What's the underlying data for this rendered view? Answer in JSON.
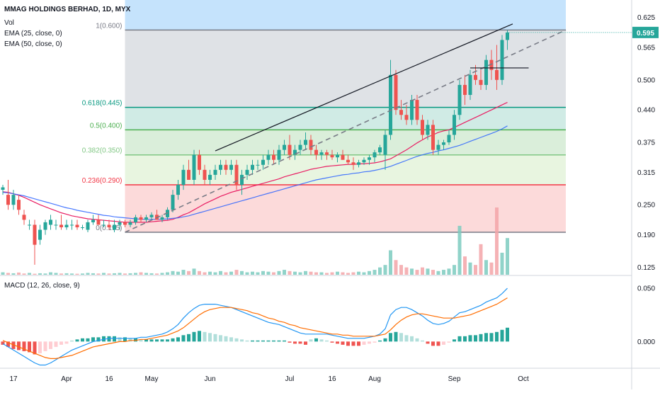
{
  "chart_data": {
    "type": "candlestick",
    "title": "MMAG HOLDINGS BERHAD, 1D, MYX",
    "legend": [
      "Vol",
      "EMA (25, close, 0)",
      "EMA (50, close, 0)"
    ],
    "last_price": "0.595",
    "price_axis": {
      "min": 0.11,
      "max": 0.66,
      "ticks": [
        "0.625",
        "0.565",
        "0.500",
        "0.440",
        "0.375",
        "0.315",
        "0.250",
        "0.190",
        "0.125"
      ]
    },
    "x_ticks": [
      {
        "i": 2,
        "label": "17"
      },
      {
        "i": 12,
        "label": "Apr"
      },
      {
        "i": 20,
        "label": "16"
      },
      {
        "i": 28,
        "label": "May"
      },
      {
        "i": 39,
        "label": "Jun"
      },
      {
        "i": 54,
        "label": "Jul"
      },
      {
        "i": 62,
        "label": "16"
      },
      {
        "i": 70,
        "label": "Aug"
      },
      {
        "i": 85,
        "label": "Sep"
      },
      {
        "i": 98,
        "label": "Oct"
      }
    ],
    "fib_levels": [
      {
        "label": "1(0.600)",
        "value": 0.6,
        "color": "#787b86"
      },
      {
        "label": "0.618(0.445)",
        "value": 0.445,
        "color": "#089981"
      },
      {
        "label": "0.5(0.400)",
        "value": 0.4,
        "color": "#4caf50"
      },
      {
        "label": "0.382(0.350)",
        "value": 0.35,
        "color": "#81c784"
      },
      {
        "label": "0.236(0.290)",
        "value": 0.29,
        "color": "#f23645"
      },
      {
        "label": "0(0.195)",
        "value": 0.195,
        "color": "#787b86"
      }
    ],
    "fib_zone_colors": {
      "above": "#bbdefb",
      "z1": "#dcdfe3",
      "z2": "#cbe9e2",
      "z3": "#d6ecd6",
      "z4": "#e6f4dd",
      "z5": "#fcd6d6"
    },
    "ohlc": [
      [
        0.28,
        0.29,
        0.27,
        0.285
      ],
      [
        0.27,
        0.3,
        0.24,
        0.25
      ],
      [
        0.25,
        0.28,
        0.24,
        0.27
      ],
      [
        0.26,
        0.27,
        0.23,
        0.24
      ],
      [
        0.23,
        0.24,
        0.21,
        0.22
      ],
      [
        0.21,
        0.22,
        0.2,
        0.21
      ],
      [
        0.21,
        0.22,
        0.13,
        0.17
      ],
      [
        0.18,
        0.21,
        0.17,
        0.2
      ],
      [
        0.2,
        0.22,
        0.19,
        0.215
      ],
      [
        0.21,
        0.23,
        0.2,
        0.22
      ],
      [
        0.21,
        0.22,
        0.2,
        0.21
      ],
      [
        0.21,
        0.23,
        0.2,
        0.205
      ],
      [
        0.205,
        0.22,
        0.2,
        0.21
      ],
      [
        0.21,
        0.22,
        0.2,
        0.21
      ],
      [
        0.21,
        0.22,
        0.2,
        0.205
      ],
      [
        0.205,
        0.21,
        0.2,
        0.205
      ],
      [
        0.2,
        0.22,
        0.195,
        0.215
      ],
      [
        0.215,
        0.23,
        0.21,
        0.22
      ],
      [
        0.22,
        0.23,
        0.21,
        0.21
      ],
      [
        0.21,
        0.22,
        0.205,
        0.21
      ],
      [
        0.21,
        0.22,
        0.2,
        0.205
      ],
      [
        0.2,
        0.22,
        0.195,
        0.21
      ],
      [
        0.21,
        0.22,
        0.2,
        0.215
      ],
      [
        0.215,
        0.22,
        0.205,
        0.21
      ],
      [
        0.21,
        0.22,
        0.205,
        0.215
      ],
      [
        0.215,
        0.23,
        0.21,
        0.225
      ],
      [
        0.225,
        0.23,
        0.215,
        0.22
      ],
      [
        0.22,
        0.23,
        0.215,
        0.225
      ],
      [
        0.225,
        0.235,
        0.22,
        0.23
      ],
      [
        0.23,
        0.24,
        0.22,
        0.22
      ],
      [
        0.22,
        0.23,
        0.215,
        0.225
      ],
      [
        0.225,
        0.245,
        0.22,
        0.24
      ],
      [
        0.24,
        0.28,
        0.235,
        0.27
      ],
      [
        0.27,
        0.3,
        0.26,
        0.29
      ],
      [
        0.29,
        0.33,
        0.28,
        0.32
      ],
      [
        0.32,
        0.34,
        0.3,
        0.3
      ],
      [
        0.3,
        0.36,
        0.29,
        0.35
      ],
      [
        0.35,
        0.36,
        0.31,
        0.32
      ],
      [
        0.32,
        0.33,
        0.29,
        0.3
      ],
      [
        0.3,
        0.32,
        0.29,
        0.31
      ],
      [
        0.31,
        0.33,
        0.3,
        0.32
      ],
      [
        0.32,
        0.34,
        0.31,
        0.33
      ],
      [
        0.33,
        0.34,
        0.31,
        0.32
      ],
      [
        0.32,
        0.34,
        0.31,
        0.33
      ],
      [
        0.33,
        0.34,
        0.28,
        0.29
      ],
      [
        0.29,
        0.32,
        0.27,
        0.31
      ],
      [
        0.31,
        0.33,
        0.3,
        0.32
      ],
      [
        0.32,
        0.34,
        0.31,
        0.33
      ],
      [
        0.33,
        0.34,
        0.32,
        0.33
      ],
      [
        0.33,
        0.35,
        0.32,
        0.34
      ],
      [
        0.34,
        0.36,
        0.33,
        0.35
      ],
      [
        0.35,
        0.36,
        0.33,
        0.34
      ],
      [
        0.34,
        0.37,
        0.33,
        0.36
      ],
      [
        0.36,
        0.38,
        0.35,
        0.37
      ],
      [
        0.37,
        0.39,
        0.34,
        0.35
      ],
      [
        0.35,
        0.37,
        0.34,
        0.36
      ],
      [
        0.36,
        0.38,
        0.35,
        0.37
      ],
      [
        0.37,
        0.395,
        0.36,
        0.38
      ],
      [
        0.38,
        0.39,
        0.35,
        0.36
      ],
      [
        0.36,
        0.37,
        0.34,
        0.35
      ],
      [
        0.35,
        0.36,
        0.34,
        0.355
      ],
      [
        0.355,
        0.36,
        0.34,
        0.35
      ],
      [
        0.35,
        0.36,
        0.34,
        0.345
      ],
      [
        0.345,
        0.355,
        0.335,
        0.35
      ],
      [
        0.35,
        0.36,
        0.34,
        0.34
      ],
      [
        0.34,
        0.35,
        0.33,
        0.335
      ],
      [
        0.335,
        0.345,
        0.32,
        0.33
      ],
      [
        0.33,
        0.34,
        0.325,
        0.335
      ],
      [
        0.335,
        0.345,
        0.33,
        0.34
      ],
      [
        0.34,
        0.35,
        0.33,
        0.345
      ],
      [
        0.345,
        0.36,
        0.335,
        0.355
      ],
      [
        0.355,
        0.37,
        0.35,
        0.365
      ],
      [
        0.35,
        0.4,
        0.32,
        0.39
      ],
      [
        0.39,
        0.54,
        0.38,
        0.51
      ],
      [
        0.51,
        0.52,
        0.43,
        0.44
      ],
      [
        0.44,
        0.46,
        0.42,
        0.43
      ],
      [
        0.43,
        0.45,
        0.41,
        0.42
      ],
      [
        0.42,
        0.47,
        0.41,
        0.46
      ],
      [
        0.46,
        0.47,
        0.41,
        0.42
      ],
      [
        0.42,
        0.43,
        0.38,
        0.39
      ],
      [
        0.39,
        0.42,
        0.38,
        0.41
      ],
      [
        0.41,
        0.42,
        0.35,
        0.36
      ],
      [
        0.36,
        0.38,
        0.35,
        0.37
      ],
      [
        0.37,
        0.38,
        0.36,
        0.375
      ],
      [
        0.375,
        0.4,
        0.37,
        0.39
      ],
      [
        0.39,
        0.44,
        0.38,
        0.43
      ],
      [
        0.43,
        0.5,
        0.42,
        0.49
      ],
      [
        0.49,
        0.51,
        0.45,
        0.47
      ],
      [
        0.47,
        0.52,
        0.46,
        0.51
      ],
      [
        0.51,
        0.53,
        0.49,
        0.5
      ],
      [
        0.5,
        0.52,
        0.48,
        0.49
      ],
      [
        0.49,
        0.55,
        0.48,
        0.54
      ],
      [
        0.54,
        0.56,
        0.5,
        0.52
      ],
      [
        0.52,
        0.57,
        0.48,
        0.5
      ],
      [
        0.5,
        0.59,
        0.49,
        0.58
      ],
      [
        0.58,
        0.6,
        0.56,
        0.595
      ]
    ],
    "volume": [
      2,
      1.5,
      1.2,
      1.8,
      1,
      1.5,
      0.8,
      1.2,
      1,
      2,
      1.5,
      1,
      1.2,
      1,
      0.8,
      1,
      1.5,
      1.2,
      1,
      1.5,
      1,
      1.2,
      1.5,
      1,
      1.2,
      1.5,
      2,
      1.5,
      1.2,
      1,
      1.5,
      2,
      3,
      2.5,
      4,
      3,
      5,
      3,
      2,
      2.5,
      2,
      3,
      2,
      2.5,
      4,
      3,
      2,
      2.5,
      2,
      3,
      2.5,
      2,
      3,
      4,
      3,
      2.5,
      2,
      3,
      2.5,
      2,
      2,
      1.5,
      2,
      2.5,
      2,
      1.5,
      2,
      2.5,
      2,
      3,
      4,
      6,
      8,
      20,
      12,
      8,
      6,
      5,
      4,
      6,
      5,
      4,
      3,
      4,
      5,
      8,
      40,
      15,
      10,
      8,
      25,
      12,
      10,
      55,
      18,
      30
    ],
    "ema25": [
      0.276,
      0.275,
      0.272,
      0.269,
      0.265,
      0.26,
      0.255,
      0.25,
      0.246,
      0.242,
      0.238,
      0.234,
      0.231,
      0.228,
      0.226,
      0.224,
      0.222,
      0.221,
      0.22,
      0.219,
      0.218,
      0.217,
      0.216,
      0.215,
      0.215,
      0.215,
      0.215,
      0.215,
      0.216,
      0.217,
      0.218,
      0.219,
      0.221,
      0.225,
      0.23,
      0.234,
      0.24,
      0.246,
      0.252,
      0.257,
      0.262,
      0.267,
      0.271,
      0.275,
      0.278,
      0.281,
      0.284,
      0.287,
      0.29,
      0.293,
      0.296,
      0.299,
      0.302,
      0.306,
      0.309,
      0.312,
      0.315,
      0.318,
      0.321,
      0.323,
      0.325,
      0.327,
      0.328,
      0.329,
      0.33,
      0.331,
      0.331,
      0.332,
      0.332,
      0.333,
      0.334,
      0.336,
      0.339,
      0.342,
      0.348,
      0.354,
      0.36,
      0.367,
      0.374,
      0.38,
      0.386,
      0.39,
      0.395,
      0.398,
      0.4,
      0.405,
      0.41,
      0.415,
      0.42,
      0.425,
      0.43,
      0.435,
      0.44,
      0.445,
      0.45,
      0.455
    ],
    "ema50": [
      0.275,
      0.274,
      0.272,
      0.27,
      0.268,
      0.265,
      0.262,
      0.259,
      0.256,
      0.253,
      0.25,
      0.247,
      0.244,
      0.242,
      0.239,
      0.237,
      0.235,
      0.233,
      0.231,
      0.229,
      0.228,
      0.226,
      0.225,
      0.224,
      0.223,
      0.222,
      0.221,
      0.221,
      0.221,
      0.221,
      0.221,
      0.222,
      0.223,
      0.224,
      0.226,
      0.228,
      0.231,
      0.234,
      0.237,
      0.24,
      0.243,
      0.246,
      0.249,
      0.252,
      0.255,
      0.258,
      0.261,
      0.264,
      0.267,
      0.27,
      0.273,
      0.276,
      0.279,
      0.282,
      0.285,
      0.288,
      0.291,
      0.294,
      0.297,
      0.3,
      0.302,
      0.304,
      0.306,
      0.308,
      0.31,
      0.311,
      0.313,
      0.314,
      0.316,
      0.317,
      0.319,
      0.321,
      0.324,
      0.327,
      0.331,
      0.335,
      0.339,
      0.343,
      0.347,
      0.35,
      0.353,
      0.355,
      0.358,
      0.36,
      0.363,
      0.366,
      0.369,
      0.373,
      0.377,
      0.381,
      0.385,
      0.389,
      0.393,
      0.397,
      0.402,
      0.408
    ],
    "macd": {
      "label": "MACD (12, 26, close, 9)",
      "ticks": [
        "0.050",
        "0.000"
      ],
      "range": [
        -0.025,
        0.06
      ],
      "hist": [
        -0.003,
        -0.005,
        -0.007,
        -0.008,
        -0.009,
        -0.01,
        -0.012,
        -0.011,
        -0.009,
        -0.007,
        -0.005,
        -0.003,
        -0.002,
        0.001,
        0.002,
        0.003,
        0.003,
        0.004,
        0.004,
        0.005,
        0.005,
        0.005,
        0.004,
        0.004,
        0.003,
        0.003,
        0.002,
        0.002,
        0.002,
        0.002,
        0.002,
        0.002,
        0.003,
        0.004,
        0.006,
        0.007,
        0.009,
        0.01,
        0.009,
        0.008,
        0.007,
        0.006,
        0.005,
        0.004,
        0.003,
        0.002,
        0.001,
        0.001,
        0.001,
        0.001,
        0.001,
        0.001,
        0.001,
        0.001,
        -0.001,
        -0.002,
        -0.002,
        -0.003,
        0.002,
        0.003,
        0.002,
        0.001,
        -0.001,
        -0.002,
        -0.003,
        -0.004,
        -0.004,
        -0.004,
        -0.003,
        -0.002,
        -0.001,
        0.001,
        0.003,
        0.008,
        0.009,
        0.008,
        0.006,
        0.005,
        0.003,
        0.001,
        -0.002,
        -0.004,
        -0.004,
        -0.003,
        -0.001,
        0.002,
        0.005,
        0.005,
        0.006,
        0.006,
        0.007,
        0.008,
        0.008,
        0.009,
        0.011,
        0.013
      ],
      "macd_line": [
        -0.002,
        -0.005,
        -0.008,
        -0.011,
        -0.014,
        -0.017,
        -0.02,
        -0.022,
        -0.022,
        -0.02,
        -0.017,
        -0.014,
        -0.011,
        -0.008,
        -0.006,
        -0.004,
        -0.002,
        0.0,
        0.001,
        0.002,
        0.003,
        0.003,
        0.003,
        0.003,
        0.003,
        0.003,
        0.004,
        0.004,
        0.005,
        0.006,
        0.007,
        0.009,
        0.012,
        0.016,
        0.022,
        0.027,
        0.031,
        0.034,
        0.035,
        0.035,
        0.035,
        0.034,
        0.033,
        0.032,
        0.03,
        0.028,
        0.026,
        0.024,
        0.022,
        0.02,
        0.018,
        0.017,
        0.016,
        0.014,
        0.012,
        0.01,
        0.008,
        0.007,
        0.007,
        0.007,
        0.007,
        0.007,
        0.006,
        0.005,
        0.004,
        0.003,
        0.003,
        0.003,
        0.003,
        0.004,
        0.005,
        0.007,
        0.012,
        0.025,
        0.03,
        0.032,
        0.032,
        0.03,
        0.027,
        0.024,
        0.02,
        0.017,
        0.016,
        0.017,
        0.019,
        0.023,
        0.027,
        0.028,
        0.03,
        0.032,
        0.034,
        0.037,
        0.039,
        0.041,
        0.045,
        0.05
      ],
      "signal_line": [
        0.001,
        -0.001,
        -0.003,
        -0.005,
        -0.007,
        -0.009,
        -0.011,
        -0.013,
        -0.015,
        -0.016,
        -0.016,
        -0.015,
        -0.014,
        -0.013,
        -0.011,
        -0.009,
        -0.007,
        -0.005,
        -0.004,
        -0.003,
        -0.002,
        -0.001,
        0.0,
        0.0,
        0.001,
        0.001,
        0.002,
        0.002,
        0.003,
        0.004,
        0.005,
        0.006,
        0.008,
        0.01,
        0.013,
        0.017,
        0.021,
        0.025,
        0.028,
        0.03,
        0.031,
        0.032,
        0.032,
        0.032,
        0.031,
        0.03,
        0.029,
        0.027,
        0.026,
        0.024,
        0.022,
        0.021,
        0.019,
        0.018,
        0.016,
        0.015,
        0.013,
        0.012,
        0.011,
        0.01,
        0.009,
        0.008,
        0.007,
        0.007,
        0.006,
        0.006,
        0.005,
        0.005,
        0.005,
        0.005,
        0.005,
        0.006,
        0.007,
        0.011,
        0.016,
        0.02,
        0.023,
        0.025,
        0.026,
        0.026,
        0.025,
        0.024,
        0.023,
        0.022,
        0.022,
        0.022,
        0.023,
        0.024,
        0.025,
        0.027,
        0.029,
        0.031,
        0.033,
        0.035,
        0.038,
        0.041
      ]
    }
  }
}
